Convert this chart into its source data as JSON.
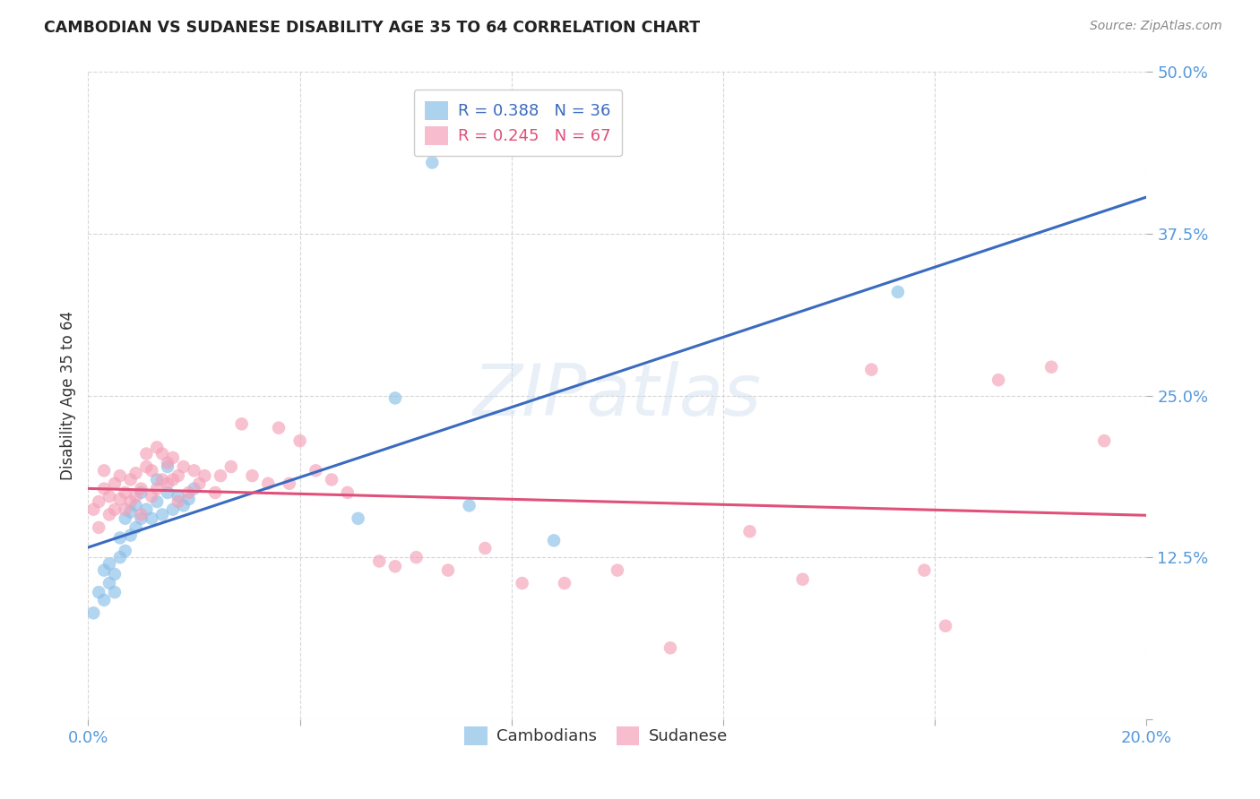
{
  "title": "CAMBODIAN VS SUDANESE DISABILITY AGE 35 TO 64 CORRELATION CHART",
  "source": "Source: ZipAtlas.com",
  "ylabel": "Disability Age 35 to 64",
  "xlim": [
    0.0,
    0.2
  ],
  "ylim": [
    0.0,
    0.5
  ],
  "xticks": [
    0.0,
    0.04,
    0.08,
    0.12,
    0.16,
    0.2
  ],
  "xticklabels": [
    "0.0%",
    "",
    "",
    "",
    "",
    "20.0%"
  ],
  "yticks": [
    0.0,
    0.125,
    0.25,
    0.375,
    0.5
  ],
  "yticklabels": [
    "",
    "12.5%",
    "25.0%",
    "37.5%",
    "50.0%"
  ],
  "grid_color": "#cccccc",
  "background_color": "#ffffff",
  "cambodian_color": "#89bfe8",
  "sudanese_color": "#f4a0b8",
  "cambodian_line_color": "#3a6bbf",
  "sudanese_line_color": "#e0507a",
  "legend_cambodian_label": "R = 0.388   N = 36",
  "legend_sudanese_label": "R = 0.245   N = 67",
  "bottom_label_cambodian": "Cambodians",
  "bottom_label_sudanese": "Sudanese",
  "watermark": "ZIPatlas",
  "cambodian_x": [
    0.001,
    0.002,
    0.003,
    0.003,
    0.004,
    0.004,
    0.005,
    0.005,
    0.006,
    0.006,
    0.007,
    0.007,
    0.008,
    0.008,
    0.009,
    0.009,
    0.01,
    0.01,
    0.011,
    0.012,
    0.013,
    0.013,
    0.014,
    0.015,
    0.015,
    0.016,
    0.017,
    0.018,
    0.019,
    0.02,
    0.051,
    0.058,
    0.065,
    0.072,
    0.088,
    0.153
  ],
  "cambodian_y": [
    0.082,
    0.098,
    0.115,
    0.092,
    0.105,
    0.12,
    0.098,
    0.112,
    0.125,
    0.14,
    0.13,
    0.155,
    0.142,
    0.16,
    0.148,
    0.165,
    0.155,
    0.175,
    0.162,
    0.155,
    0.168,
    0.185,
    0.158,
    0.175,
    0.195,
    0.162,
    0.172,
    0.165,
    0.17,
    0.178,
    0.155,
    0.248,
    0.43,
    0.165,
    0.138,
    0.33
  ],
  "sudanese_x": [
    0.001,
    0.002,
    0.002,
    0.003,
    0.003,
    0.004,
    0.004,
    0.005,
    0.005,
    0.006,
    0.006,
    0.007,
    0.007,
    0.008,
    0.008,
    0.009,
    0.009,
    0.01,
    0.01,
    0.011,
    0.011,
    0.012,
    0.012,
    0.013,
    0.013,
    0.014,
    0.014,
    0.015,
    0.015,
    0.016,
    0.016,
    0.017,
    0.017,
    0.018,
    0.019,
    0.02,
    0.021,
    0.022,
    0.024,
    0.025,
    0.027,
    0.029,
    0.031,
    0.034,
    0.036,
    0.038,
    0.04,
    0.043,
    0.046,
    0.049,
    0.055,
    0.058,
    0.062,
    0.068,
    0.075,
    0.082,
    0.09,
    0.1,
    0.11,
    0.125,
    0.135,
    0.148,
    0.158,
    0.162,
    0.172,
    0.182,
    0.192
  ],
  "sudanese_y": [
    0.162,
    0.148,
    0.168,
    0.178,
    0.192,
    0.158,
    0.172,
    0.162,
    0.182,
    0.17,
    0.188,
    0.162,
    0.175,
    0.168,
    0.185,
    0.172,
    0.19,
    0.158,
    0.178,
    0.195,
    0.205,
    0.172,
    0.192,
    0.178,
    0.21,
    0.185,
    0.205,
    0.182,
    0.198,
    0.185,
    0.202,
    0.168,
    0.188,
    0.195,
    0.175,
    0.192,
    0.182,
    0.188,
    0.175,
    0.188,
    0.195,
    0.228,
    0.188,
    0.182,
    0.225,
    0.182,
    0.215,
    0.192,
    0.185,
    0.175,
    0.122,
    0.118,
    0.125,
    0.115,
    0.132,
    0.105,
    0.105,
    0.115,
    0.055,
    0.145,
    0.108,
    0.27,
    0.115,
    0.072,
    0.262,
    0.272,
    0.215
  ]
}
